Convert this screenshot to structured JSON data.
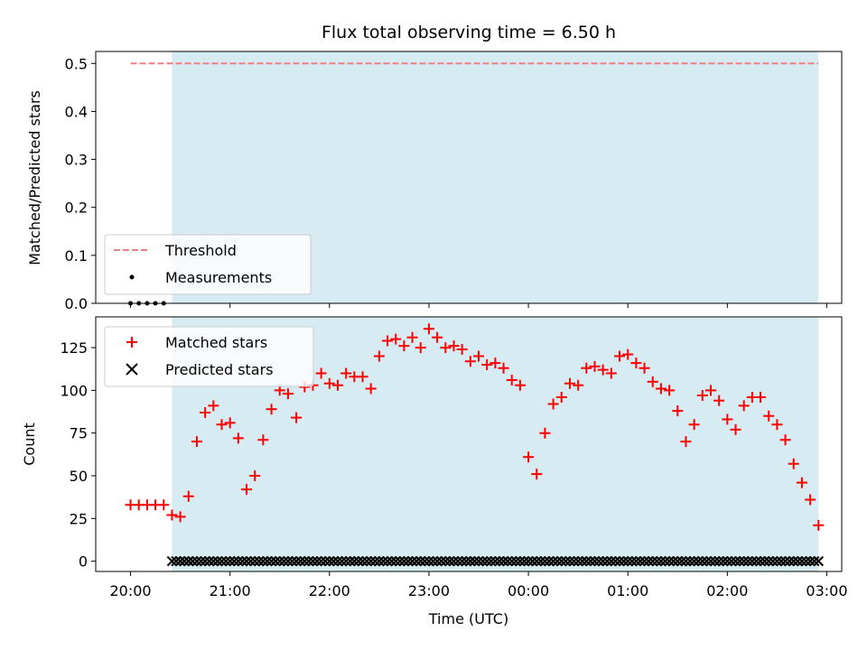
{
  "title": "Flux total observing time = 6.50 h",
  "colors": {
    "shade": "#add8e6",
    "threshold": "#f08080",
    "matched": "#ff0000",
    "predicted": "#000000",
    "measurements": "#000000"
  },
  "chart_data": [
    {
      "type": "line",
      "panel": "top",
      "ylabel": "Matched/Predicted stars",
      "ylim": [
        0,
        0.525
      ],
      "yticks": [
        "0.0",
        "0.1",
        "0.2",
        "0.3",
        "0.4",
        "0.5"
      ],
      "shaded_span": {
        "start": "20:25",
        "end": "02:55"
      },
      "threshold": {
        "name": "Threshold",
        "y": 0.5,
        "x_start": "20:00",
        "x_end": "02:55",
        "style": "dashed"
      },
      "measurements": {
        "name": "Measurements",
        "x": [
          "20:00",
          "20:05",
          "20:10",
          "20:15",
          "20:20"
        ],
        "y": [
          0,
          0,
          0,
          0,
          0
        ]
      },
      "legend_position": "lower-left",
      "legend": [
        "Threshold",
        "Measurements"
      ]
    },
    {
      "type": "scatter",
      "panel": "bottom",
      "xlabel": "Time (UTC)",
      "ylabel": "Count",
      "ylim": [
        -6,
        143
      ],
      "yticks": [
        "0",
        "25",
        "50",
        "75",
        "100",
        "125"
      ],
      "xticks": [
        "20:00",
        "21:00",
        "22:00",
        "23:00",
        "00:00",
        "01:00",
        "02:00",
        "03:00"
      ],
      "shaded_span": {
        "start": "20:25",
        "end": "02:55"
      },
      "legend_position": "upper-left",
      "legend": [
        "Matched stars",
        "Predicted stars"
      ],
      "series": [
        {
          "name": "Matched stars",
          "marker": "+",
          "x": [
            "20:00",
            "20:05",
            "20:10",
            "20:15",
            "20:20",
            "20:25",
            "20:30",
            "20:35",
            "20:40",
            "20:45",
            "20:50",
            "20:55",
            "21:00",
            "21:05",
            "21:10",
            "21:15",
            "21:20",
            "21:25",
            "21:30",
            "21:35",
            "21:40",
            "21:45",
            "21:50",
            "21:55",
            "22:00",
            "22:05",
            "22:10",
            "22:15",
            "22:20",
            "22:25",
            "22:30",
            "22:35",
            "22:40",
            "22:45",
            "22:50",
            "22:55",
            "23:00",
            "23:05",
            "23:10",
            "23:15",
            "23:20",
            "23:25",
            "23:30",
            "23:35",
            "23:40",
            "23:45",
            "23:50",
            "23:55",
            "00:00",
            "00:05",
            "00:10",
            "00:15",
            "00:20",
            "00:25",
            "00:30",
            "00:35",
            "00:40",
            "00:45",
            "00:50",
            "00:55",
            "01:00",
            "01:05",
            "01:10",
            "01:15",
            "01:20",
            "01:25",
            "01:30",
            "01:35",
            "01:40",
            "01:45",
            "01:50",
            "01:55",
            "02:00",
            "02:05",
            "02:10",
            "02:15",
            "02:20",
            "02:25",
            "02:30",
            "02:35",
            "02:40",
            "02:45",
            "02:50",
            "02:55"
          ],
          "y": [
            33,
            33,
            33,
            33,
            33,
            27,
            26,
            38,
            70,
            87,
            91,
            80,
            81,
            72,
            42,
            50,
            71,
            89,
            100,
            98,
            84,
            102,
            103,
            110,
            104,
            103,
            110,
            108,
            108,
            101,
            120,
            129,
            130,
            126,
            131,
            125,
            136,
            131,
            125,
            126,
            124,
            117,
            120,
            115,
            116,
            113,
            106,
            103,
            61,
            51,
            75,
            92,
            96,
            104,
            103,
            113,
            114,
            112,
            110,
            120,
            121,
            116,
            113,
            105,
            101,
            100,
            88,
            70,
            80,
            97,
            100,
            94,
            83,
            77,
            91,
            96,
            96,
            85,
            80,
            71,
            57,
            46,
            36,
            21
          ]
        },
        {
          "name": "Predicted stars",
          "marker": "x",
          "value": 0,
          "x_start": "20:25",
          "x_end": "02:55",
          "step_minutes": 2.5
        }
      ]
    }
  ]
}
